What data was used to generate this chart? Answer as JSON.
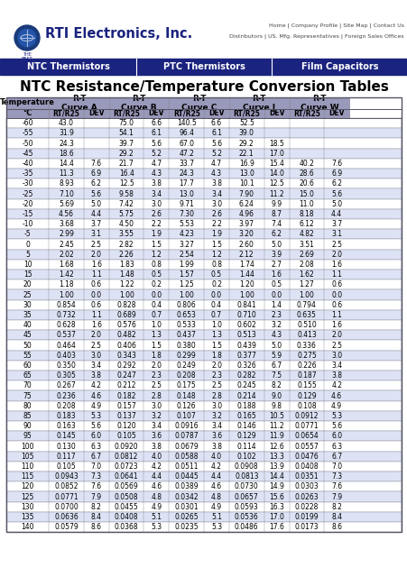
{
  "title": "NTC Resistance/Temperature Conversion Tables",
  "company": "RTI Electronics, Inc.",
  "nav_items": [
    "NTC Thermistors",
    "PTC Thermistors",
    "Film Capacitors"
  ],
  "table_data": [
    [
      "-60",
      "43.0",
      "",
      "75.0",
      "6.6",
      "140.5",
      "6.6",
      "52.5",
      "",
      "",
      ""
    ],
    [
      "-55",
      "31.9",
      "",
      "54.1",
      "6.1",
      "96.4",
      "6.1",
      "39.0",
      "",
      "",
      ""
    ],
    [
      "-50",
      "24.3",
      "",
      "39.7",
      "5.6",
      "67.0",
      "5.6",
      "29.2",
      "18.5",
      "",
      ""
    ],
    [
      "-45",
      "18.6",
      "",
      "29.2",
      "5.2",
      "47.2",
      "5.2",
      "22.1",
      "17.0",
      "",
      ""
    ],
    [
      "-40",
      "14.4",
      "7.6",
      "21.7",
      "4.7",
      "33.7",
      "4.7",
      "16.9",
      "15.4",
      "40.2",
      "7.6"
    ],
    [
      "-35",
      "11.3",
      "6.9",
      "16.4",
      "4.3",
      "24.3",
      "4.3",
      "13.0",
      "14.0",
      "28.6",
      "6.9"
    ],
    [
      "-30",
      "8.93",
      "6.2",
      "12.5",
      "3.8",
      "17.7",
      "3.8",
      "10.1",
      "12.5",
      "20.6",
      "6.2"
    ],
    [
      "-25",
      "7.10",
      "5.6",
      "9.58",
      "3.4",
      "13.0",
      "3.4",
      "7.90",
      "11.2",
      "15.0",
      "5.6"
    ],
    [
      "-20",
      "5.69",
      "5.0",
      "7.42",
      "3.0",
      "9.71",
      "3.0",
      "6.24",
      "9.9",
      "11.0",
      "5.0"
    ],
    [
      "-15",
      "4.56",
      "4.4",
      "5.75",
      "2.6",
      "7.30",
      "2.6",
      "4.96",
      "8.7",
      "8.18",
      "4.4"
    ],
    [
      "-10",
      "3.68",
      "3.7",
      "4.50",
      "2.2",
      "5.53",
      "2.2",
      "3.97",
      "7.4",
      "6.12",
      "3.7"
    ],
    [
      "-5",
      "2.99",
      "3.1",
      "3.55",
      "1.9",
      "4.23",
      "1.9",
      "3.20",
      "6.2",
      "4.82",
      "3.1"
    ],
    [
      "0",
      "2.45",
      "2.5",
      "2.82",
      "1.5",
      "3.27",
      "1.5",
      "2.60",
      "5.0",
      "3.51",
      "2.5"
    ],
    [
      "5",
      "2.02",
      "2.0",
      "2.26",
      "1.2",
      "2.54",
      "1.2",
      "2.12",
      "3.9",
      "2.69",
      "2.0"
    ],
    [
      "10",
      "1.68",
      "1.6",
      "1.83",
      "0.8",
      "1.99",
      "0.8",
      "1.74",
      "2.7",
      "2.08",
      "1.6"
    ],
    [
      "15",
      "1.42",
      "1.1",
      "1.48",
      "0.5",
      "1.57",
      "0.5",
      "1.44",
      "1.6",
      "1.62",
      "1.1"
    ],
    [
      "20",
      "1.18",
      "0.6",
      "1.22",
      "0.2",
      "1.25",
      "0.2",
      "1.20",
      "0.5",
      "1.27",
      "0.6"
    ],
    [
      "25",
      "1.00",
      "0.0",
      "1.00",
      "0.0",
      "1.00",
      "0.0",
      "1.00",
      "0.0",
      "1.00",
      "0.0"
    ],
    [
      "30",
      "0.854",
      "0.6",
      "0.828",
      "0.4",
      "0.806",
      "0.4",
      "0.841",
      "1.4",
      "0.794",
      "0.6"
    ],
    [
      "35",
      "0.732",
      "1.1",
      "0.689",
      "0.7",
      "0.653",
      "0.7",
      "0.710",
      "2.3",
      "0.635",
      "1.1"
    ],
    [
      "40",
      "0.628",
      "1.6",
      "0.576",
      "1.0",
      "0.533",
      "1.0",
      "0.602",
      "3.2",
      "0.510",
      "1.6"
    ],
    [
      "45",
      "0.537",
      "2.0",
      "0.482",
      "1.3",
      "0.437",
      "1.3",
      "0.513",
      "4.3",
      "0.413",
      "2.0"
    ],
    [
      "50",
      "0.464",
      "2.5",
      "0.406",
      "1.5",
      "0.380",
      "1.5",
      "0.439",
      "5.0",
      "0.336",
      "2.5"
    ],
    [
      "55",
      "0.403",
      "3.0",
      "0.343",
      "1.8",
      "0.299",
      "1.8",
      "0.377",
      "5.9",
      "0.275",
      "3.0"
    ],
    [
      "60",
      "0.350",
      "3.4",
      "0.292",
      "2.0",
      "0.249",
      "2.0",
      "0.326",
      "6.7",
      "0.226",
      "3.4"
    ],
    [
      "65",
      "0.305",
      "3.8",
      "0.247",
      "2.3",
      "0.208",
      "2.3",
      "0.282",
      "7.5",
      "0.187",
      "3.8"
    ],
    [
      "70",
      "0.267",
      "4.2",
      "0.212",
      "2.5",
      "0.175",
      "2.5",
      "0.245",
      "8.2",
      "0.155",
      "4.2"
    ],
    [
      "75",
      "0.236",
      "4.6",
      "0.182",
      "2.8",
      "0.148",
      "2.8",
      "0.214",
      "9.0",
      "0.129",
      "4.6"
    ],
    [
      "80",
      "0.208",
      "4.9",
      "0.157",
      "3.0",
      "0.126",
      "3.0",
      "0.188",
      "9.8",
      "0.108",
      "4.9"
    ],
    [
      "85",
      "0.183",
      "5.3",
      "0.137",
      "3.2",
      "0.107",
      "3.2",
      "0.165",
      "10.5",
      "0.0912",
      "5.3"
    ],
    [
      "90",
      "0.163",
      "5.6",
      "0.120",
      "3.4",
      "0.0916",
      "3.4",
      "0.146",
      "11.2",
      "0.0771",
      "5.6"
    ],
    [
      "95",
      "0.145",
      "6.0",
      "0.105",
      "3.6",
      "0.0787",
      "3.6",
      "0.129",
      "11.9",
      "0.0654",
      "6.0"
    ],
    [
      "100",
      "0.130",
      "6.3",
      "0.0920",
      "3.8",
      "0.0679",
      "3.8",
      "0.114",
      "12.6",
      "0.0557",
      "6.3"
    ],
    [
      "105",
      "0.117",
      "6.7",
      "0.0812",
      "4.0",
      "0.0588",
      "4.0",
      "0.102",
      "13.3",
      "0.0476",
      "6.7"
    ],
    [
      "110",
      "0.105",
      "7.0",
      "0.0723",
      "4.2",
      "0.0511",
      "4.2",
      "0.0908",
      "13.9",
      "0.0408",
      "7.0"
    ],
    [
      "115",
      "0.0943",
      "7.3",
      "0.0641",
      "4.4",
      "0.0445",
      "4.4",
      "0.0813",
      "14.4",
      "0.0351",
      "7.3"
    ],
    [
      "120",
      "0.0852",
      "7.6",
      "0.0569",
      "4.6",
      "0.0389",
      "4.6",
      "0.0730",
      "14.9",
      "0.0303",
      "7.6"
    ],
    [
      "125",
      "0.0771",
      "7.9",
      "0.0508",
      "4.8",
      "0.0342",
      "4.8",
      "0.0657",
      "15.6",
      "0.0263",
      "7.9"
    ],
    [
      "130",
      "0.0700",
      "8.2",
      "0.0455",
      "4.9",
      "0.0301",
      "4.9",
      "0.0593",
      "16.3",
      "0.0228",
      "8.2"
    ],
    [
      "135",
      "0.0636",
      "8.4",
      "0.0408",
      "5.1",
      "0.0265",
      "5.1",
      "0.0536",
      "17.0",
      "0.0199",
      "8.4"
    ],
    [
      "140",
      "0.0579",
      "8.6",
      "0.0368",
      "5.3",
      "0.0235",
      "5.3",
      "0.0486",
      "17.6",
      "0.0173",
      "8.6"
    ]
  ],
  "header_bg": "#9999bb",
  "row_bg_even": "#dde3f5",
  "row_bg_odd": "#ffffff",
  "nav_bg": "#1a237e",
  "border_color": "#888899"
}
